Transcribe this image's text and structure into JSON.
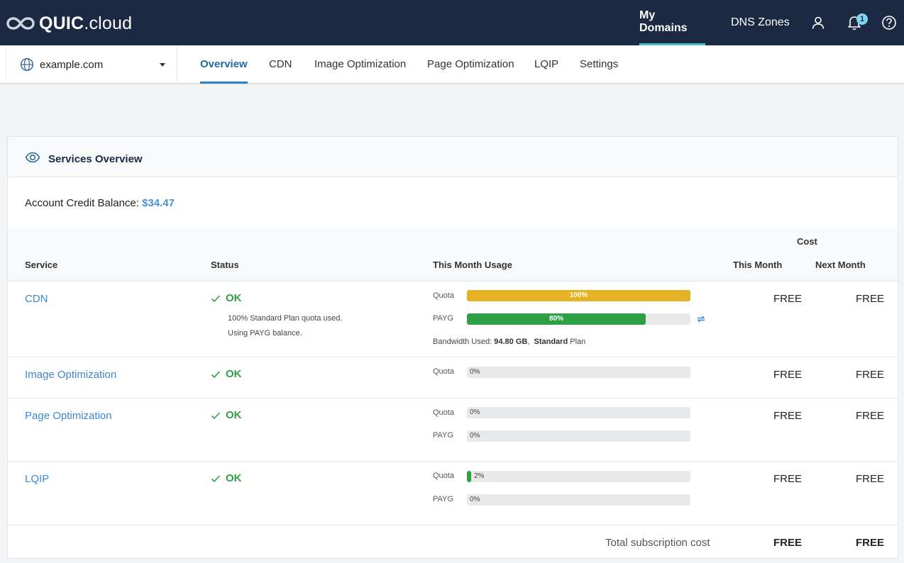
{
  "brand": {
    "logo_bold": "QUIC",
    "logo_rest": ".cloud"
  },
  "topnav": {
    "my_domains": "My Domains",
    "dns_zones": "DNS Zones",
    "notification_count": "1"
  },
  "domain": {
    "selected": "example.com"
  },
  "tabs": {
    "overview": "Overview",
    "cdn": "CDN",
    "image_opt": "Image Optimization",
    "page_opt": "Page Optimization",
    "lqip": "LQIP",
    "settings": "Settings"
  },
  "panel": {
    "title": "Services Overview",
    "credit_label": "Account Credit Balance:",
    "credit_value": "$34.47"
  },
  "table": {
    "headers": {
      "service": "Service",
      "status": "Status",
      "usage": "This Month Usage",
      "cost": "Cost",
      "this_month": "This Month",
      "next_month": "Next Month"
    },
    "rows": [
      {
        "service": "CDN",
        "status": "OK",
        "note1": "100% Standard Plan quota used.",
        "note2": "Using PAYG balance.",
        "quota_label": "Quota",
        "quota_pct": 100,
        "quota_text": "100%",
        "payg_label": "PAYG",
        "payg_pct": 80,
        "payg_text": "80%",
        "bw_label": "Bandwidth Used:",
        "bw_value": "94.80 GB",
        "plan_value": "Standard",
        "plan_suffix": "Plan",
        "this_month": "FREE",
        "next_month": "FREE"
      },
      {
        "service": "Image Optimization",
        "status": "OK",
        "quota_label": "Quota",
        "quota_pct": 0,
        "quota_text": "0%",
        "this_month": "FREE",
        "next_month": "FREE"
      },
      {
        "service": "Page Optimization",
        "status": "OK",
        "quota_label": "Quota",
        "quota_pct": 0,
        "quota_text": "0%",
        "payg_label": "PAYG",
        "payg_pct": 0,
        "payg_text": "0%",
        "this_month": "FREE",
        "next_month": "FREE"
      },
      {
        "service": "LQIP",
        "status": "OK",
        "quota_label": "Quota",
        "quota_pct": 2,
        "quota_text": "2%",
        "payg_label": "PAYG",
        "payg_pct": 0,
        "payg_text": "0%",
        "this_month": "FREE",
        "next_month": "FREE"
      }
    ],
    "total": {
      "label": "Total subscription cost",
      "this_month": "FREE",
      "next_month": "FREE"
    }
  },
  "colors": {
    "topbar": "#1b2942",
    "accent": "#2f7fc5",
    "ok": "#2f9e44",
    "quota_full": "#e6b223",
    "payg": "#2ea043",
    "link": "#3d87cf"
  },
  "icons": [
    "logo-infinity-icon",
    "user-icon",
    "bell-icon",
    "help-icon",
    "globe-icon",
    "chevron-down-icon",
    "eye-icon",
    "check-icon",
    "refresh-icon"
  ]
}
